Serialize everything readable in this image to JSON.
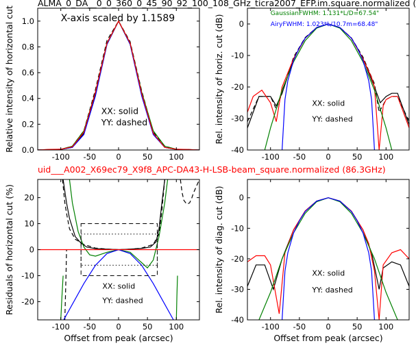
{
  "figure": {
    "top_title": "ALMA_0_DA__0_0_360_0_45_90_92_100_108_GHz_ticra2007_EFP.im.square.normalized (",
    "mid_title": "uid___A002_X69ec79_X9f8_APC-DA43-H-LSB-beam_square.normalized (86.3GHz)",
    "colors": {
      "black": "#000000",
      "red": "#ff0000",
      "green": "#008000",
      "blue": "#0000ff"
    }
  },
  "chart_data": [
    {
      "type": "line",
      "panel": "top-left",
      "xlabel": "",
      "ylabel": "Relative intensity of horizontal cut",
      "xlim": [
        -140,
        140
      ],
      "ylim": [
        0,
        1.1
      ],
      "xticks": [
        "-100",
        "-50",
        "0",
        "50",
        "100"
      ],
      "yticks": [
        "0.0",
        "0.2",
        "0.4",
        "0.6",
        "0.8",
        "1.0"
      ],
      "annotations": [
        "X-axis scaled by 1.1589",
        "XX: solid",
        "YY: dashed"
      ],
      "series": [
        {
          "color": "black",
          "style": "solid",
          "x": [
            -140,
            -120,
            -100,
            -80,
            -60,
            -40,
            -20,
            0,
            20,
            40,
            60,
            80,
            100,
            120,
            140
          ],
          "y": [
            0.0,
            0.003,
            0.005,
            0.02,
            0.13,
            0.43,
            0.82,
            1.0,
            0.82,
            0.43,
            0.13,
            0.02,
            0.005,
            0.003,
            0.0
          ]
        },
        {
          "color": "black",
          "style": "dashed",
          "x": [
            -140,
            -120,
            -100,
            -80,
            -60,
            -40,
            -20,
            0,
            20,
            40,
            60,
            80,
            100,
            120,
            140
          ],
          "y": [
            0.0,
            0.003,
            0.005,
            0.03,
            0.15,
            0.47,
            0.85,
            1.0,
            0.84,
            0.46,
            0.14,
            0.03,
            0.005,
            0.003,
            0.0
          ]
        },
        {
          "color": "blue",
          "style": "solid",
          "x": [
            -140,
            -120,
            -100,
            -80,
            -60,
            -40,
            -20,
            0,
            20,
            40,
            60,
            80,
            100,
            120,
            140
          ],
          "y": [
            0.0,
            0.002,
            0.006,
            0.02,
            0.12,
            0.42,
            0.82,
            1.0,
            0.82,
            0.42,
            0.12,
            0.02,
            0.006,
            0.002,
            0.0
          ]
        },
        {
          "color": "green",
          "style": "solid",
          "x": [
            -140,
            -120,
            -100,
            -80,
            -60,
            -40,
            -20,
            0,
            20,
            40,
            60,
            80,
            100,
            120,
            140
          ],
          "y": [
            0.0,
            0.0,
            0.006,
            0.03,
            0.15,
            0.45,
            0.83,
            1.0,
            0.83,
            0.45,
            0.15,
            0.03,
            0.006,
            0.0,
            0.0
          ]
        },
        {
          "color": "red",
          "style": "solid",
          "x": [
            -140,
            -120,
            -100,
            -80,
            -60,
            -40,
            -20,
            0,
            20,
            40,
            60,
            80,
            100,
            120,
            140
          ],
          "y": [
            0.0,
            0.005,
            0.006,
            0.025,
            0.14,
            0.45,
            0.83,
            1.0,
            0.83,
            0.44,
            0.13,
            0.02,
            0.006,
            0.004,
            0.0
          ]
        }
      ]
    },
    {
      "type": "line",
      "panel": "top-right",
      "xlabel": "",
      "ylabel": "Rel. intensity of horiz. cut (dB)",
      "xlim": [
        -140,
        140
      ],
      "ylim": [
        -40,
        5
      ],
      "xticks": [
        "-100",
        "-50",
        "0",
        "50",
        "100"
      ],
      "yticks": [
        "-40",
        "-30",
        "-20",
        "-10",
        "0"
      ],
      "annotations": [
        "GaussianFWHM: 1.131*L/D=67.54\"",
        "AiryFWHM: 1.023*L/10.7m=68.48\"",
        "XX: solid",
        "YY: dashed"
      ],
      "series": [
        {
          "color": "black",
          "style": "solid",
          "x": [
            -140,
            -120,
            -100,
            -90,
            -80,
            -60,
            -40,
            -20,
            0,
            20,
            40,
            60,
            80,
            90,
            100,
            110,
            120,
            140
          ],
          "y": [
            -33,
            -23,
            -23,
            -26,
            -22,
            -11,
            -4.5,
            -1.1,
            0,
            -1.1,
            -4.5,
            -11,
            -20,
            -25,
            -23,
            -22,
            -22,
            -32
          ]
        },
        {
          "color": "black",
          "style": "dashed",
          "x": [
            -140,
            -120,
            -100,
            -90,
            -80,
            -60,
            -40,
            -20,
            0,
            20,
            40,
            60,
            80,
            88,
            100,
            110,
            120,
            140
          ],
          "y": [
            -31,
            -23,
            -23,
            -27,
            -22,
            -10.5,
            -4.3,
            -1.1,
            0,
            -1.1,
            -4.4,
            -10.5,
            -19,
            -28,
            -24,
            -23,
            -23,
            -31
          ]
        },
        {
          "color": "red",
          "style": "solid",
          "x": [
            -140,
            -130,
            -115,
            -100,
            -90,
            -80,
            -60,
            -40,
            -20,
            0,
            20,
            40,
            60,
            75,
            80,
            88,
            95,
            100,
            110,
            120,
            140
          ],
          "y": [
            -28,
            -23,
            -21,
            -25,
            -31,
            -20,
            -11,
            -4.5,
            -1.1,
            0,
            -1.1,
            -4.5,
            -11,
            -17,
            -20,
            -40,
            -26,
            -24,
            -23,
            -23,
            -33
          ]
        },
        {
          "color": "green",
          "style": "solid",
          "x": [
            -110,
            -100,
            -80,
            -60,
            -40,
            -20,
            0,
            20,
            40,
            60,
            80,
            100,
            110
          ],
          "y": [
            -40,
            -33,
            -21,
            -12,
            -5.3,
            -1.3,
            0,
            -1.3,
            -5.3,
            -12,
            -21,
            -33,
            -40
          ]
        },
        {
          "color": "blue",
          "style": "solid",
          "x": [
            -80,
            -75,
            -70,
            -60,
            -50,
            -40,
            -20,
            0,
            20,
            40,
            50,
            60,
            70,
            75,
            80
          ],
          "y": [
            -40,
            -24,
            -18,
            -11.5,
            -7.5,
            -4.5,
            -1.1,
            0,
            -1.1,
            -4.5,
            -7.5,
            -11.5,
            -18,
            -24,
            -40
          ]
        }
      ]
    },
    {
      "type": "line",
      "panel": "bottom-left",
      "xlabel": "Offset from peak (arcsec)",
      "ylabel": "Residuals of horizontal cut (%)",
      "xlim": [
        -140,
        140
      ],
      "ylim": [
        -27,
        27
      ],
      "xticks": [
        "-100",
        "-50",
        "0",
        "50",
        "100"
      ],
      "yticks": [
        "-20",
        "-10",
        "0",
        "10",
        "20"
      ],
      "annotations": [
        "XX: solid",
        "YY: dashed"
      ],
      "series": [
        {
          "color": "black",
          "style": "solid",
          "x": [
            -96,
            -90,
            -85,
            -75,
            -65,
            -55,
            -40,
            -20,
            0,
            20,
            40,
            55,
            65,
            70,
            75,
            80
          ],
          "y": [
            27,
            18,
            12,
            5,
            2.5,
            1,
            0.4,
            0.2,
            0,
            0.2,
            0.5,
            1,
            3,
            8,
            18,
            27
          ]
        },
        {
          "color": "black",
          "style": "dashed",
          "x": [
            -97,
            -93,
            -90,
            -85,
            -75,
            -60,
            -40,
            -20,
            0,
            20,
            40,
            60,
            70,
            75,
            80
          ],
          "y": [
            27,
            18,
            14,
            8,
            4,
            2,
            0.6,
            0.2,
            0,
            0.2,
            0.6,
            2,
            6,
            15,
            27
          ]
        },
        {
          "color": "black",
          "style": "dashed",
          "x": [
            -93,
            -92,
            -91,
            -90
          ],
          "y": [
            -27,
            -18,
            -10,
            0
          ]
        },
        {
          "color": "black",
          "style": "dashed",
          "x": [
            107,
            110,
            113,
            118,
            123,
            127,
            130,
            140
          ],
          "y": [
            27,
            22,
            19,
            17.5,
            18,
            20,
            22,
            27
          ]
        },
        {
          "color": "green",
          "style": "solid",
          "x": [
            -85,
            -80,
            -70,
            -60,
            -50,
            -40,
            -20,
            0,
            20,
            40,
            50,
            60,
            70,
            80,
            85
          ],
          "y": [
            27,
            18,
            7,
            1,
            -2,
            -2.5,
            -1,
            0,
            -1,
            -5,
            -7,
            -4,
            5,
            18,
            27
          ]
        },
        {
          "color": "green",
          "style": "solid",
          "x": [
            -100,
            -98,
            -96
          ],
          "y": [
            -27,
            -18,
            -10
          ]
        },
        {
          "color": "green",
          "style": "solid",
          "x": [
            100,
            101,
            102
          ],
          "y": [
            -27,
            -18,
            -10
          ]
        },
        {
          "color": "blue",
          "style": "solid",
          "x": [
            -95,
            -80,
            -60,
            -40,
            -20,
            0,
            20,
            40,
            60,
            80,
            95
          ],
          "y": [
            -27,
            -21,
            -13,
            -6,
            -1.5,
            0,
            -1.5,
            -6,
            -13,
            -21,
            -27
          ]
        },
        {
          "color": "red",
          "style": "solid",
          "x": [
            -140,
            140
          ],
          "y": [
            0,
            0
          ]
        }
      ],
      "rectangles": [
        {
          "style": "dashed",
          "x": [
            -65,
            67
          ],
          "y": [
            -10,
            10
          ]
        },
        {
          "style": "dotted",
          "x": [
            -65,
            67
          ],
          "y": [
            -6,
            6
          ]
        }
      ]
    },
    {
      "type": "line",
      "panel": "bottom-right",
      "xlabel": "Offset from peak (arcsec)",
      "ylabel": "Rel. intensity of diag. cut (dB)",
      "xlim": [
        -140,
        140
      ],
      "ylim": [
        -40,
        6
      ],
      "xticks": [
        "-100",
        "-50",
        "0",
        "50",
        "100"
      ],
      "yticks": [
        "-40",
        "-30",
        "-20",
        "-10",
        "0"
      ],
      "annotations": [
        "XX: solid",
        "YY: dashed"
      ],
      "series": [
        {
          "color": "black",
          "style": "solid",
          "x": [
            -140,
            -125,
            -110,
            -95,
            -80,
            -60,
            -40,
            -20,
            0,
            20,
            40,
            60,
            75,
            88,
            95,
            110,
            125,
            140
          ],
          "y": [
            -29,
            -22,
            -22,
            -30,
            -20,
            -10.5,
            -4.4,
            -1.1,
            0,
            -1.1,
            -4.4,
            -10.5,
            -18,
            -30,
            -23,
            -21,
            -22,
            -29
          ]
        },
        {
          "color": "red",
          "style": "solid",
          "x": [
            -140,
            -125,
            -110,
            -100,
            -85,
            -75,
            -60,
            -40,
            -20,
            0,
            20,
            40,
            60,
            70,
            80,
            88,
            95,
            110,
            125,
            140
          ],
          "y": [
            -21,
            -19,
            -19,
            -22,
            -38,
            -18,
            -10.5,
            -4.3,
            -1.1,
            0,
            -1.1,
            -4.4,
            -10.5,
            -15,
            -24,
            -40,
            -22,
            -18,
            -17,
            -20
          ]
        },
        {
          "color": "green",
          "style": "solid",
          "x": [
            -120,
            -100,
            -80,
            -60,
            -40,
            -20,
            0,
            20,
            40,
            60,
            80,
            100,
            120
          ],
          "y": [
            -40,
            -31,
            -20,
            -11.5,
            -5.1,
            -1.3,
            0,
            -1.3,
            -5.1,
            -11.5,
            -20,
            -31,
            -40
          ]
        },
        {
          "color": "blue",
          "style": "solid",
          "x": [
            -80,
            -75,
            -70,
            -60,
            -50,
            -40,
            -20,
            0,
            20,
            40,
            50,
            60,
            70,
            75,
            80
          ],
          "y": [
            -40,
            -24,
            -18,
            -11.5,
            -7.5,
            -4.5,
            -1.1,
            0,
            -1.1,
            -4.5,
            -7.5,
            -11.5,
            -18,
            -24,
            -40
          ]
        }
      ]
    }
  ]
}
